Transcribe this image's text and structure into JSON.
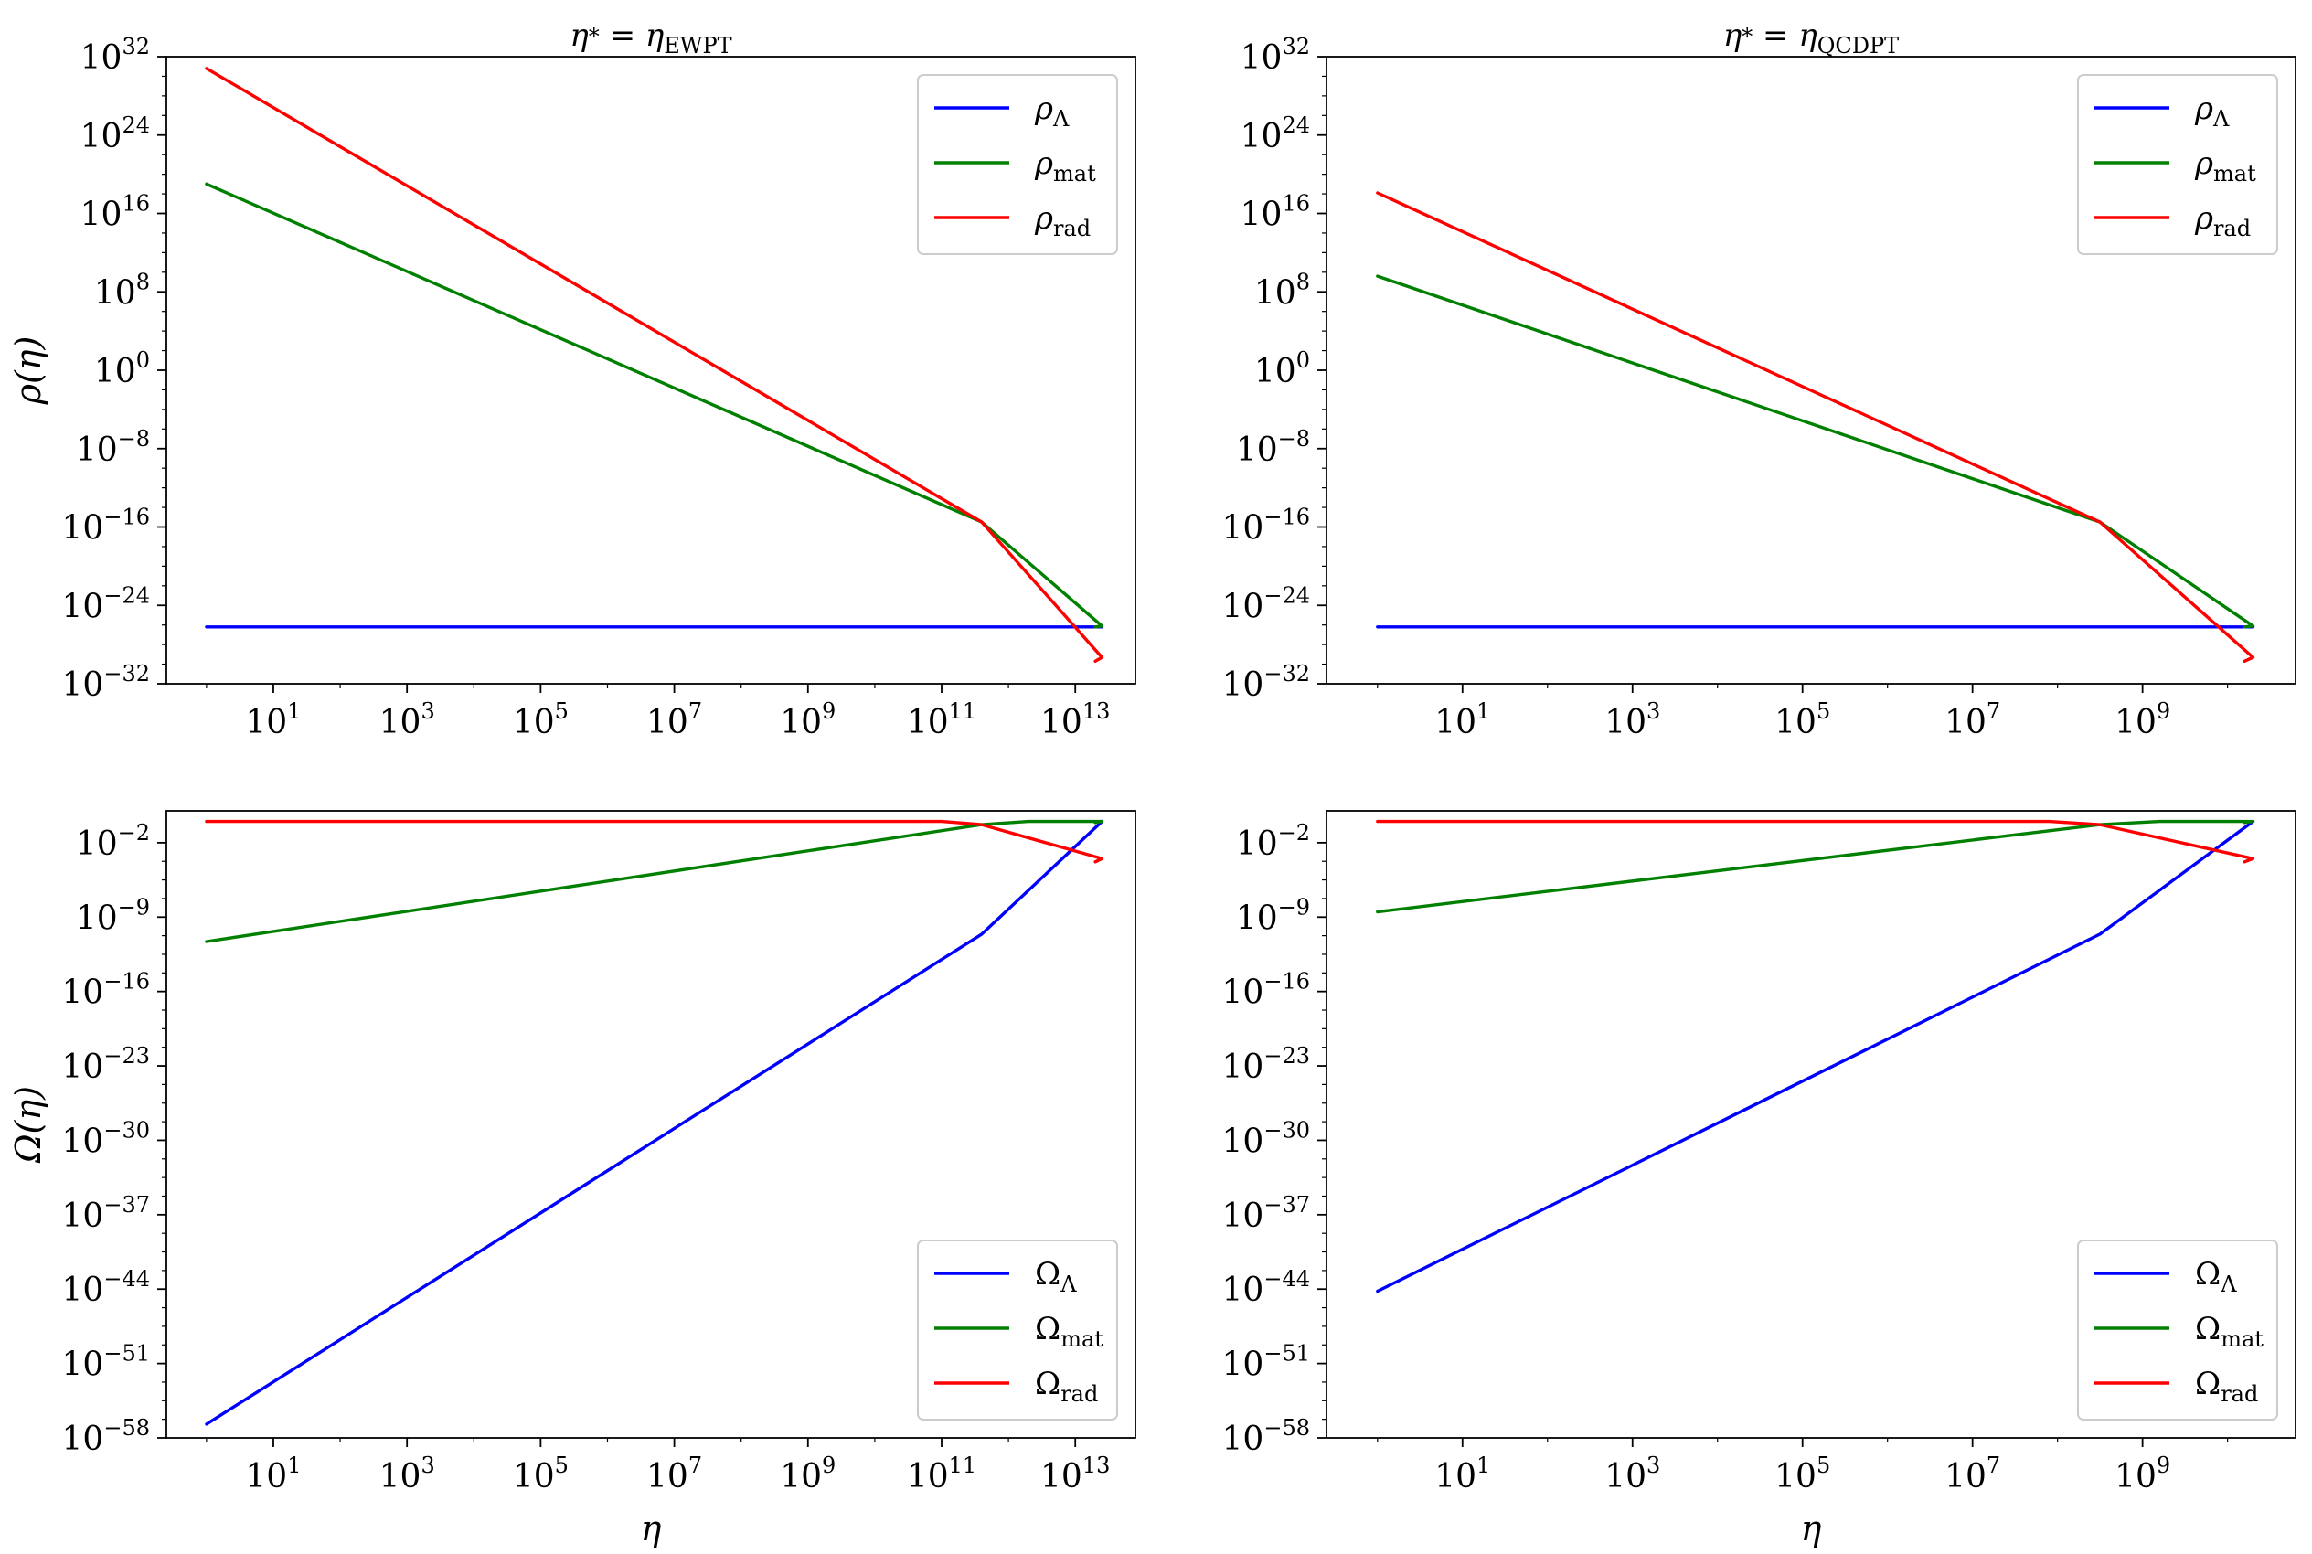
{
  "figure": {
    "panels": [
      {
        "id": "rho-ewpt",
        "title": "η* = ηEWPT",
        "title_parts": {
          "base": "η",
          "star": "*",
          "eq": " = ",
          "sym": "η",
          "sub": "EWPT"
        },
        "ylabel": "ρ(η)",
        "xlabel": "",
        "legend_position": "top-right"
      },
      {
        "id": "rho-qcdpt",
        "title": "η* = ηQCDPT",
        "title_parts": {
          "base": "η",
          "star": "*",
          "eq": " = ",
          "sym": "η",
          "sub": "QCDPT"
        },
        "ylabel": "",
        "xlabel": "",
        "legend_position": "top-right"
      },
      {
        "id": "omega-ewpt",
        "title": "",
        "ylabel": "Ω(η)",
        "xlabel": "η",
        "legend_position": "bottom-right"
      },
      {
        "id": "omega-qcdpt",
        "title": "",
        "ylabel": "",
        "xlabel": "η",
        "legend_position": "bottom-right"
      }
    ]
  },
  "chart_data": [
    {
      "type": "line",
      "title": "η* = ηEWPT",
      "xlabel": "",
      "ylabel": "ρ(η)",
      "xscale": "log",
      "yscale": "log",
      "xlim_exp": [
        -0.6,
        13.9
      ],
      "ylim_exp": [
        -32,
        32
      ],
      "xticks_exp": [
        1,
        3,
        5,
        7,
        9,
        11,
        13
      ],
      "yticks_exp": [
        32,
        24,
        16,
        8,
        0,
        -8,
        -16,
        -24,
        -32
      ],
      "legend": "top-right",
      "series": [
        {
          "name": "ρΛ",
          "base": "ρ",
          "sub": "Λ",
          "color": "#0000ff",
          "x_exp": [
            0,
            13.35,
            13.4
          ],
          "y_exp": [
            -26.2,
            -26.2,
            -26.2
          ]
        },
        {
          "name": "ρmat",
          "base": "ρ",
          "sub": "mat",
          "color": "#008000",
          "x_exp": [
            0,
            11.6,
            13.4,
            13.3
          ],
          "y_exp": [
            19,
            -15.5,
            -26.1,
            -26.2
          ]
        },
        {
          "name": "ρrad",
          "base": "ρ",
          "sub": "rad",
          "color": "#ff0000",
          "x_exp": [
            0,
            11.6,
            13.4,
            13.3
          ],
          "y_exp": [
            30.8,
            -15.5,
            -29.3,
            -29.7
          ]
        }
      ]
    },
    {
      "type": "line",
      "title": "η* = ηQCDPT",
      "xlabel": "",
      "ylabel": "",
      "xscale": "log",
      "yscale": "log",
      "xlim_exp": [
        -0.6,
        10.8
      ],
      "ylim_exp": [
        -32,
        32
      ],
      "xticks_exp": [
        1,
        3,
        5,
        7,
        9
      ],
      "yticks_exp": [
        32,
        24,
        16,
        8,
        0,
        -8,
        -16,
        -24,
        -32
      ],
      "legend": "top-right",
      "series": [
        {
          "name": "ρΛ",
          "base": "ρ",
          "sub": "Λ",
          "color": "#0000ff",
          "x_exp": [
            0,
            10.25,
            10.3
          ],
          "y_exp": [
            -26.2,
            -26.2,
            -26.2
          ]
        },
        {
          "name": "ρmat",
          "base": "ρ",
          "sub": "mat",
          "color": "#008000",
          "x_exp": [
            0,
            8.5,
            10.3,
            10.2
          ],
          "y_exp": [
            9.6,
            -15.5,
            -26.1,
            -26.2
          ]
        },
        {
          "name": "ρrad",
          "base": "ρ",
          "sub": "rad",
          "color": "#ff0000",
          "x_exp": [
            0,
            8.5,
            10.3,
            10.2
          ],
          "y_exp": [
            18.1,
            -15.5,
            -29.3,
            -29.7
          ]
        }
      ]
    },
    {
      "type": "line",
      "title": "",
      "xlabel": "η",
      "ylabel": "Ω(η)",
      "xscale": "log",
      "yscale": "log",
      "xlim_exp": [
        -0.6,
        13.9
      ],
      "ylim_exp": [
        -58,
        1
      ],
      "xticks_exp": [
        1,
        3,
        5,
        7,
        9,
        11,
        13
      ],
      "yticks_exp": [
        -2,
        -9,
        -16,
        -23,
        -30,
        -37,
        -44,
        -51,
        -58
      ],
      "legend": "bottom-right",
      "series": [
        {
          "name": "ΩΛ",
          "base": "Ω",
          "sub": "Λ",
          "color": "#0000ff",
          "x_exp": [
            0,
            11.6,
            13.4
          ],
          "y_exp": [
            -56.7,
            -10.6,
            0
          ]
        },
        {
          "name": "Ωmat",
          "base": "Ω",
          "sub": "mat",
          "color": "#008000",
          "x_exp": [
            0,
            11.6,
            12.3,
            13.4,
            13.3
          ],
          "y_exp": [
            -11.3,
            -0.3,
            0,
            0,
            -0.1
          ]
        },
        {
          "name": "Ωrad",
          "base": "Ω",
          "sub": "rad",
          "color": "#ff0000",
          "x_exp": [
            0,
            11.0,
            11.6,
            13.4,
            13.3
          ],
          "y_exp": [
            0,
            0,
            -0.3,
            -3.5,
            -3.8
          ]
        }
      ]
    },
    {
      "type": "line",
      "title": "",
      "xlabel": "η",
      "ylabel": "",
      "xscale": "log",
      "yscale": "log",
      "xlim_exp": [
        -0.6,
        10.8
      ],
      "ylim_exp": [
        -58,
        1
      ],
      "xticks_exp": [
        1,
        3,
        5,
        7,
        9
      ],
      "yticks_exp": [
        -2,
        -9,
        -16,
        -23,
        -30,
        -37,
        -44,
        -51,
        -58
      ],
      "legend": "bottom-right",
      "series": [
        {
          "name": "ΩΛ",
          "base": "Ω",
          "sub": "Λ",
          "color": "#0000ff",
          "x_exp": [
            0,
            8.5,
            10.3
          ],
          "y_exp": [
            -44.2,
            -10.6,
            0
          ]
        },
        {
          "name": "Ωmat",
          "base": "Ω",
          "sub": "mat",
          "color": "#008000",
          "x_exp": [
            0,
            8.5,
            9.2,
            10.3,
            10.2
          ],
          "y_exp": [
            -8.5,
            -0.3,
            0,
            0,
            -0.1
          ]
        },
        {
          "name": "Ωrad",
          "base": "Ω",
          "sub": "rad",
          "color": "#ff0000",
          "x_exp": [
            0,
            7.9,
            8.5,
            10.3,
            10.2
          ],
          "y_exp": [
            0,
            0,
            -0.3,
            -3.5,
            -3.8
          ]
        }
      ]
    }
  ]
}
